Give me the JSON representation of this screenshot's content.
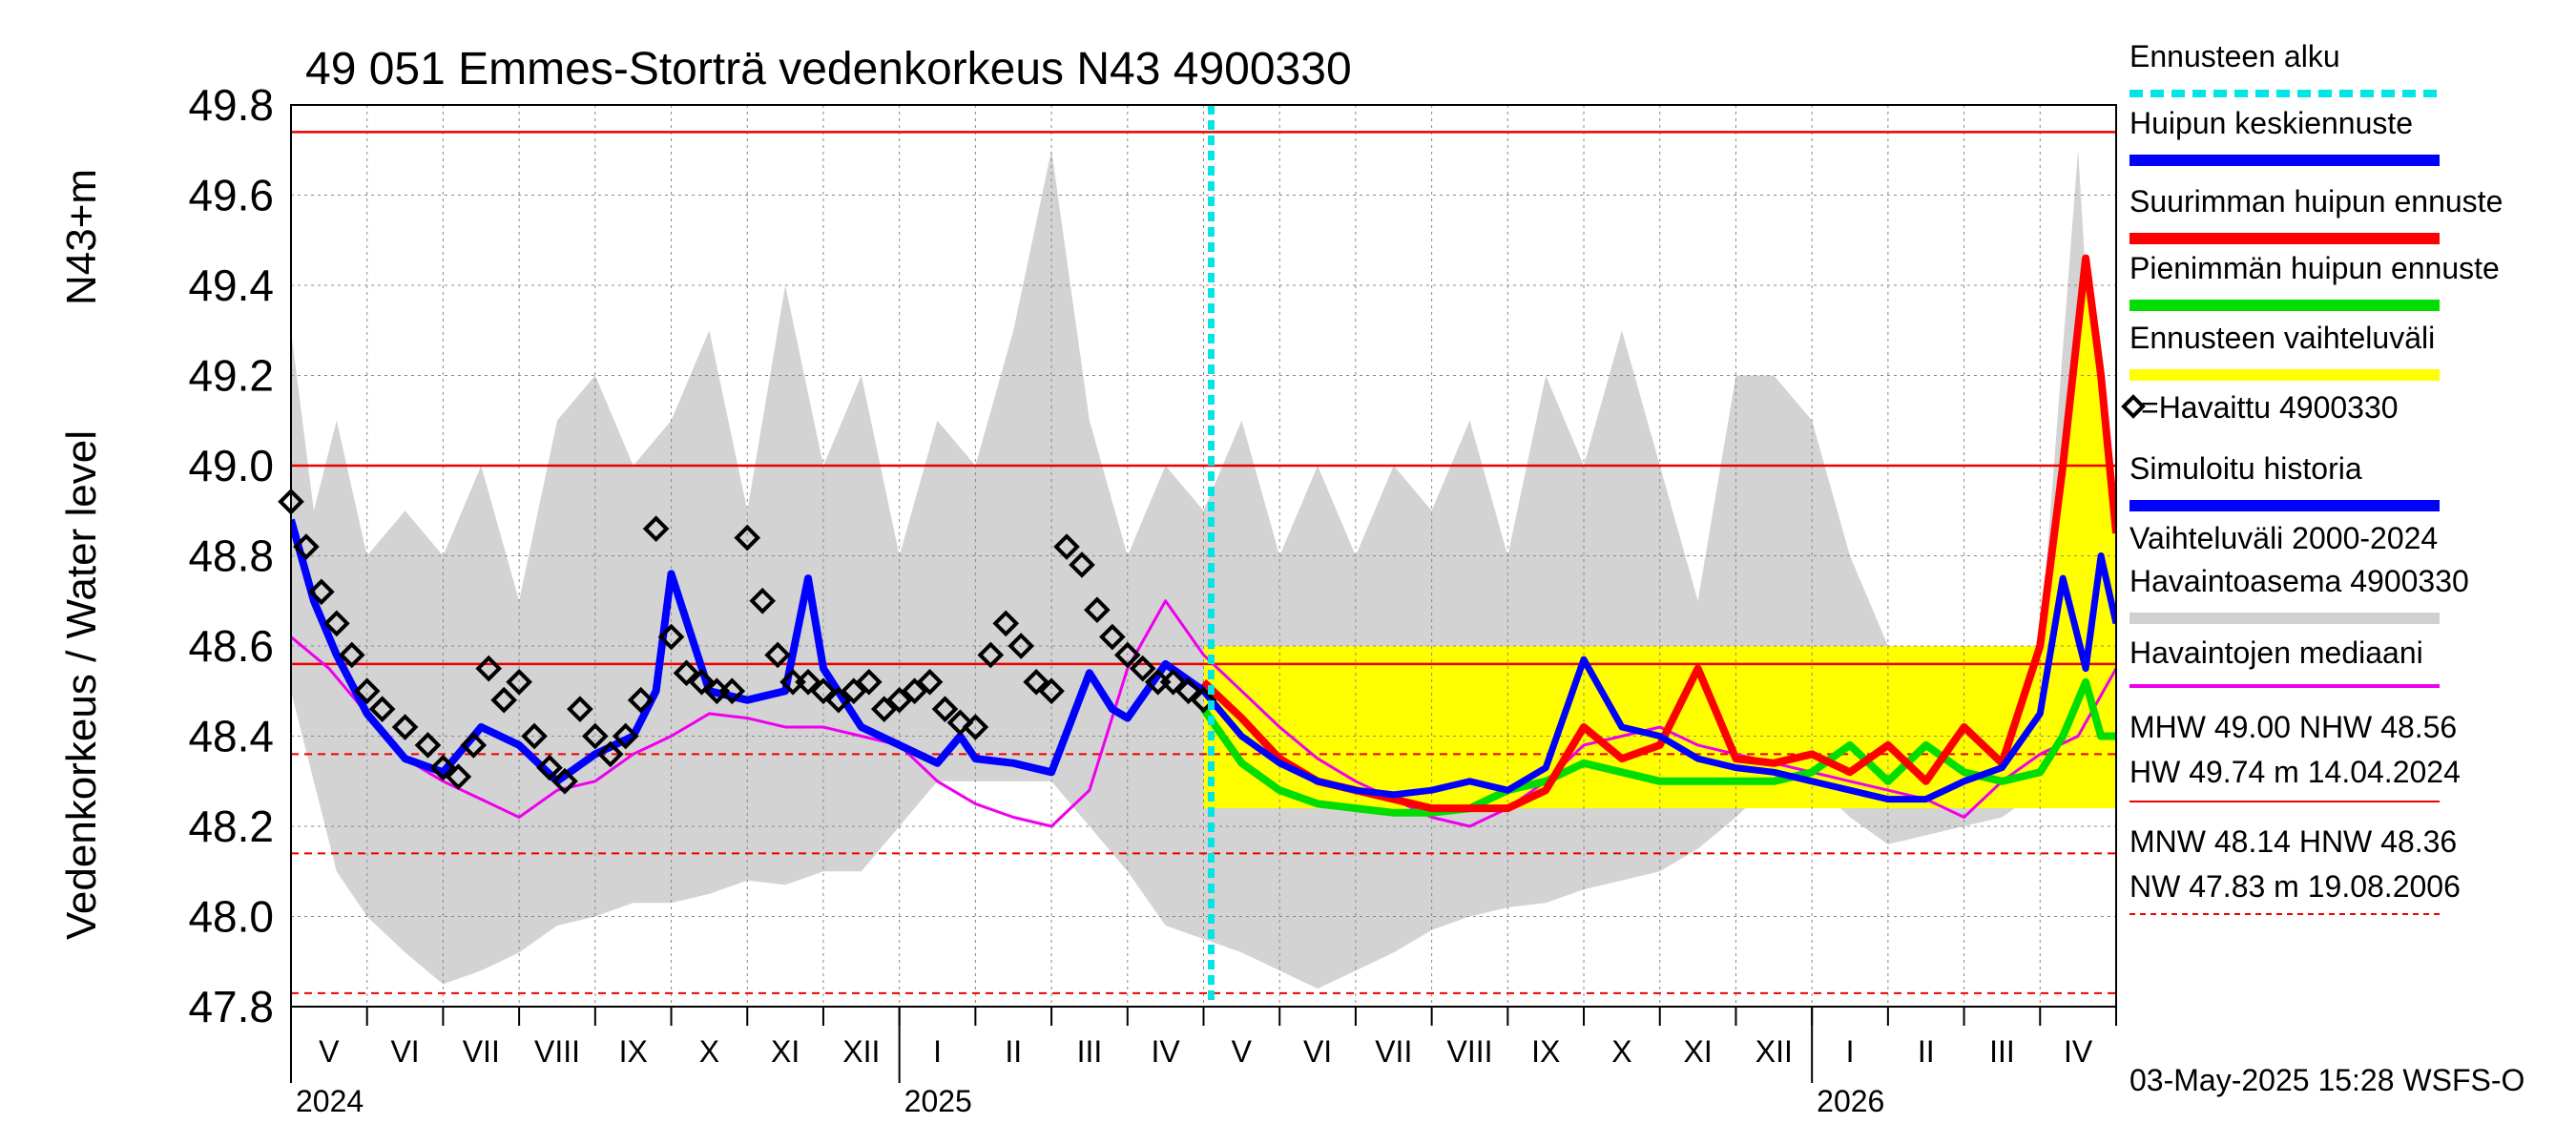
{
  "chart_data": {
    "type": "line",
    "title": "49 051 Emmes-Storträ vedenkorkeus N43 4900330",
    "ylabel_main": "Vedenkorkeus / Water level",
    "ylabel_unit": "N43+m",
    "ylim": [
      47.8,
      49.8
    ],
    "yticks": [
      "47.8",
      "48.0",
      "48.2",
      "48.4",
      "48.6",
      "48.8",
      "49.0",
      "49.2",
      "49.4",
      "49.6",
      "49.8"
    ],
    "x_start_month": "2024-04",
    "months": [
      "V",
      "VI",
      "VII",
      "VIII",
      "IX",
      "X",
      "XI",
      "XII",
      "I",
      "II",
      "III",
      "IV",
      "V",
      "VI",
      "VII",
      "VIII",
      "IX",
      "X",
      "XI",
      "XII",
      "I",
      "II",
      "III",
      "IV"
    ],
    "years": [
      {
        "label": "2024",
        "month_index": 0
      },
      {
        "label": "2025",
        "month_index": 8
      },
      {
        "label": "2026",
        "month_index": 20
      }
    ],
    "forecast_start_month_index": 12.1,
    "hlines_solid": [
      49.74,
      49.0,
      48.56
    ],
    "hlines_dashed": [
      48.36,
      48.14,
      47.83
    ],
    "variation_band": {
      "months": [
        0,
        0.3,
        0.6,
        1,
        1.5,
        2,
        2.5,
        3,
        3.5,
        4,
        4.5,
        5,
        5.5,
        6,
        6.5,
        7,
        7.5,
        8,
        8.5,
        9,
        9.5,
        10,
        10.5,
        11,
        11.5,
        12,
        12.5,
        13,
        13.5,
        14,
        14.5,
        15,
        15.5,
        16,
        16.5,
        17,
        17.5,
        18,
        18.5,
        19,
        19.5,
        20,
        20.5,
        21,
        21.5,
        22,
        22.5,
        23,
        23.5,
        24
      ],
      "upper": [
        49.3,
        48.9,
        49.1,
        48.8,
        48.9,
        48.8,
        49.0,
        48.7,
        49.1,
        49.2,
        49.0,
        49.1,
        49.3,
        48.9,
        49.4,
        49.0,
        49.2,
        48.8,
        49.1,
        49.0,
        49.3,
        49.7,
        49.1,
        48.8,
        49.0,
        48.9,
        49.1,
        48.8,
        49.0,
        48.8,
        49.0,
        48.9,
        49.1,
        48.8,
        49.2,
        49.0,
        49.3,
        49.0,
        48.7,
        49.2,
        49.2,
        49.1,
        48.8,
        48.6,
        48.5,
        48.5,
        48.6,
        48.6,
        49.7,
        48.3
      ],
      "lower": [
        48.5,
        48.3,
        48.1,
        48.0,
        47.92,
        47.85,
        47.88,
        47.92,
        47.98,
        48.0,
        48.03,
        48.03,
        48.05,
        48.08,
        48.07,
        48.1,
        48.1,
        48.2,
        48.3,
        48.3,
        48.3,
        48.3,
        48.2,
        48.1,
        47.98,
        47.95,
        47.92,
        47.88,
        47.84,
        47.88,
        47.92,
        47.97,
        48.0,
        48.02,
        48.03,
        48.06,
        48.08,
        48.1,
        48.15,
        48.22,
        48.3,
        48.3,
        48.22,
        48.16,
        48.18,
        48.2,
        48.22,
        48.28,
        48.3,
        48.3
      ]
    },
    "series": [
      {
        "name": "Havaittu 4900330",
        "color": "#000000",
        "months": [
          0,
          0.2,
          0.4,
          0.6,
          0.8,
          1.0,
          1.2,
          1.5,
          1.8,
          2.0,
          2.2,
          2.4,
          2.6,
          2.8,
          3.0,
          3.2,
          3.4,
          3.6,
          3.8,
          4.0,
          4.2,
          4.4,
          4.6,
          4.8,
          5.0,
          5.2,
          5.4,
          5.6,
          5.8,
          6.0,
          6.2,
          6.4,
          6.6,
          6.8,
          7.0,
          7.2,
          7.4,
          7.6,
          7.8,
          8.0,
          8.2,
          8.4,
          8.6,
          8.8,
          9.0,
          9.2,
          9.4,
          9.6,
          9.8,
          10.0,
          10.2,
          10.4,
          10.6,
          10.8,
          11.0,
          11.2,
          11.4,
          11.6,
          11.8,
          12.0
        ],
        "values": [
          48.92,
          48.82,
          48.72,
          48.65,
          48.58,
          48.5,
          48.46,
          48.42,
          48.38,
          48.33,
          48.31,
          48.38,
          48.55,
          48.48,
          48.52,
          48.4,
          48.33,
          48.3,
          48.46,
          48.4,
          48.36,
          48.4,
          48.48,
          48.86,
          48.62,
          48.54,
          48.52,
          48.5,
          48.5,
          48.84,
          48.7,
          48.58,
          48.52,
          48.52,
          48.5,
          48.48,
          48.5,
          48.52,
          48.46,
          48.48,
          48.5,
          48.52,
          48.46,
          48.43,
          48.42,
          48.58,
          48.65,
          48.6,
          48.52,
          48.5,
          48.82,
          48.78,
          48.68,
          48.62,
          48.58,
          48.55,
          48.52,
          48.52,
          48.5,
          48.48
        ]
      },
      {
        "name": "Simuloitu historia",
        "color": "#0000ff",
        "months": [
          0,
          0.3,
          0.6,
          1.0,
          1.5,
          2.0,
          2.5,
          3.0,
          3.5,
          4.0,
          4.5,
          4.8,
          5.0,
          5.5,
          6.0,
          6.5,
          6.8,
          7.0,
          7.5,
          8.0,
          8.5,
          8.8,
          9.0,
          9.5,
          10.0,
          10.5,
          10.8,
          11.0,
          11.5,
          12.0
        ],
        "values": [
          48.88,
          48.7,
          48.58,
          48.45,
          48.35,
          48.32,
          48.42,
          48.38,
          48.3,
          48.36,
          48.4,
          48.5,
          48.76,
          48.5,
          48.48,
          48.5,
          48.75,
          48.55,
          48.42,
          48.38,
          48.34,
          48.4,
          48.35,
          48.34,
          48.32,
          48.54,
          48.46,
          48.44,
          48.56,
          48.5
        ]
      },
      {
        "name": "Havaintojen mediaani",
        "color": "#ee00ee",
        "months": [
          0,
          0.5,
          1.0,
          1.5,
          2.0,
          2.5,
          3.0,
          3.5,
          4.0,
          4.5,
          5.0,
          5.5,
          6.0,
          6.5,
          7.0,
          7.5,
          8.0,
          8.5,
          9.0,
          9.5,
          10.0,
          10.5,
          11.0,
          11.5,
          12.0,
          12.5,
          13.0,
          13.5,
          14.0,
          14.5,
          15.0,
          15.5,
          16.0,
          16.5,
          17.0,
          17.5,
          18.0,
          18.5,
          19.0,
          19.5,
          20.0,
          20.5,
          21.0,
          21.5,
          22.0,
          22.5,
          23.0,
          23.5,
          24.0
        ],
        "values": [
          48.62,
          48.55,
          48.45,
          48.35,
          48.3,
          48.26,
          48.22,
          48.28,
          48.3,
          48.36,
          48.4,
          48.45,
          48.44,
          48.42,
          48.42,
          48.4,
          48.38,
          48.3,
          48.25,
          48.22,
          48.2,
          48.28,
          48.55,
          48.7,
          48.58,
          48.5,
          48.42,
          48.35,
          48.3,
          48.26,
          48.22,
          48.2,
          48.24,
          48.3,
          48.38,
          48.4,
          48.42,
          48.38,
          48.36,
          48.34,
          48.32,
          48.3,
          48.28,
          48.26,
          48.22,
          48.3,
          48.36,
          48.4,
          48.55
        ]
      },
      {
        "name": "Huipun keskiennuste",
        "color": "#0000ff",
        "months": [
          12.0,
          12.5,
          13.0,
          13.5,
          14.0,
          14.5,
          15.0,
          15.5,
          16.0,
          16.5,
          17.0,
          17.5,
          18.0,
          18.5,
          19.0,
          19.5,
          20.0,
          20.5,
          21.0,
          21.5,
          22.0,
          22.5,
          23.0,
          23.3,
          23.6,
          23.8,
          24.0
        ],
        "values": [
          48.5,
          48.4,
          48.34,
          48.3,
          48.28,
          48.27,
          48.28,
          48.3,
          48.28,
          48.33,
          48.57,
          48.42,
          48.4,
          48.35,
          48.33,
          48.32,
          48.3,
          48.28,
          48.26,
          48.26,
          48.3,
          48.33,
          48.45,
          48.75,
          48.55,
          48.8,
          48.65
        ]
      },
      {
        "name": "Suurimman huipun ennuste",
        "color": "#ff0000",
        "months": [
          12.0,
          12.5,
          13.0,
          13.5,
          14.0,
          14.5,
          15.0,
          15.5,
          16.0,
          16.5,
          17.0,
          17.5,
          18.0,
          18.5,
          19.0,
          19.5,
          20.0,
          20.5,
          21.0,
          21.5,
          22.0,
          22.5,
          23.0,
          23.3,
          23.6,
          23.8,
          24.0
        ],
        "values": [
          48.52,
          48.44,
          48.35,
          48.3,
          48.28,
          48.26,
          48.24,
          48.24,
          48.24,
          48.28,
          48.42,
          48.35,
          48.38,
          48.55,
          48.35,
          48.34,
          48.36,
          48.32,
          48.38,
          48.3,
          48.42,
          48.34,
          48.6,
          49.0,
          49.46,
          49.2,
          48.85
        ]
      },
      {
        "name": "Pienimmän huipun ennuste",
        "color": "#00dd00",
        "months": [
          12.0,
          12.5,
          13.0,
          13.5,
          14.0,
          14.5,
          15.0,
          15.5,
          16.0,
          16.5,
          17.0,
          17.5,
          18.0,
          18.5,
          19.0,
          19.5,
          20.0,
          20.5,
          21.0,
          21.5,
          22.0,
          22.5,
          23.0,
          23.3,
          23.6,
          23.8,
          24.0
        ],
        "values": [
          48.46,
          48.34,
          48.28,
          48.25,
          48.24,
          48.23,
          48.23,
          48.24,
          48.28,
          48.3,
          48.34,
          48.32,
          48.3,
          48.3,
          48.3,
          48.3,
          48.32,
          48.38,
          48.3,
          48.38,
          48.32,
          48.3,
          48.32,
          48.4,
          48.52,
          48.4,
          48.4
        ]
      },
      {
        "name": "Ennusteen vaihteluväli",
        "color": "#ffff00"
      }
    ],
    "legend": [
      {
        "label": "Ennusteen alku",
        "color": "#00e5e5",
        "style": "dashed"
      },
      {
        "label": "Huipun keskiennuste",
        "color": "#0000ff",
        "style": "thick"
      },
      {
        "label": "Suurimman huipun ennuste",
        "color": "#ff0000",
        "style": "thick"
      },
      {
        "label": "Pienimmän huipun ennuste",
        "color": "#00dd00",
        "style": "thick"
      },
      {
        "label": "Ennusteen vaihteluväli",
        "color": "#ffff00",
        "style": "thick"
      },
      {
        "label": "=Havaittu 4900330",
        "color": "#000000",
        "style": "marker"
      },
      {
        "label": "Simuloitu historia",
        "color": "#0000ff",
        "style": "thick"
      },
      {
        "label": "Vaihteluväli 2000-2024",
        "color": "#d0d0d0",
        "style": "none"
      },
      {
        "label": " Havaintoasema 4900330",
        "color": "#d0d0d0",
        "style": "thick"
      },
      {
        "label": "Havaintojen mediaani",
        "color": "#ee00ee",
        "style": "thin"
      }
    ],
    "stats": {
      "line1": "MHW  49.00 NHW  48.56",
      "line2": "HW  49.74 m 14.04.2024",
      "line3": "MNW  48.14 HNW  48.36",
      "line4": "NW  47.83 m 19.08.2006"
    },
    "footer": "03-May-2025 15:28 WSFS-O"
  }
}
